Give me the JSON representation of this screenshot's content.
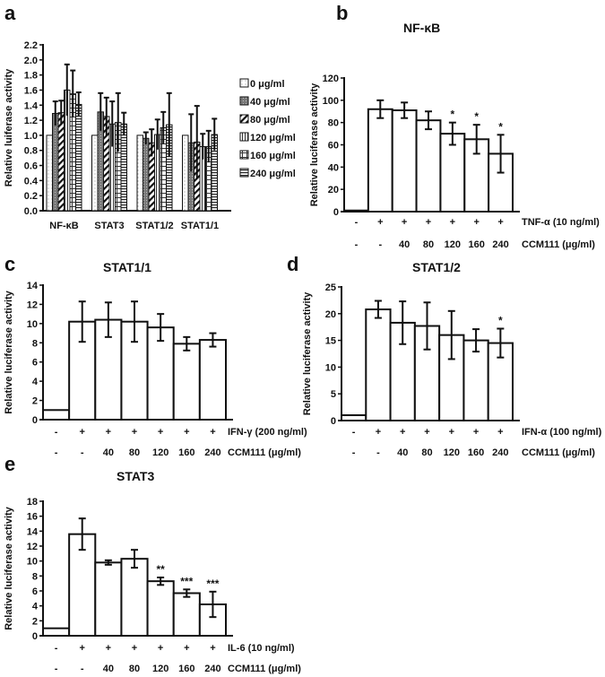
{
  "chart_data": [
    {
      "panel": "a",
      "type": "bar",
      "title": "",
      "ylabel": "Relative luiferase activity",
      "xlabel": "",
      "ylim": [
        0,
        2.2
      ],
      "yticks": [
        "0.0",
        "0.2",
        "0.4",
        "0.6",
        "0.8",
        "1.0",
        "1.2",
        "1.4",
        "1.6",
        "1.8",
        "2.0",
        "2.2"
      ],
      "categories": [
        "NF-κB",
        "STAT3",
        "STAT1/2",
        "STAT1/1"
      ],
      "legend_placement": "right",
      "series": [
        {
          "name": "0 μg/ml",
          "pattern": "dots",
          "values": [
            1.0,
            1.0,
            1.0,
            1.0
          ],
          "errors": [
            0,
            0,
            0,
            0
          ]
        },
        {
          "name": "40 μg/ml",
          "pattern": "dark-dots",
          "values": [
            1.29,
            1.31,
            0.96,
            0.9
          ],
          "errors": [
            0.16,
            0.25,
            0.08,
            0.38
          ]
        },
        {
          "name": "80 μg/ml",
          "pattern": "diagonal",
          "values": [
            1.3,
            1.25,
            0.9,
            0.91
          ],
          "errors": [
            0.16,
            0.25,
            0.18,
            0.48
          ]
        },
        {
          "name": "120 μg/ml",
          "pattern": "vertical",
          "values": [
            1.6,
            1.15,
            1.01,
            0.85
          ],
          "errors": [
            0.34,
            0.3,
            0.2,
            0.17
          ]
        },
        {
          "name": "160 μg/ml",
          "pattern": "grid",
          "values": [
            1.55,
            1.17,
            1.1,
            0.85
          ],
          "errors": [
            0.31,
            0.39,
            0.21,
            0.21
          ]
        },
        {
          "name": "240 μg/ml",
          "pattern": "horizontal",
          "values": [
            1.41,
            1.15,
            1.14,
            1.01
          ],
          "errors": [
            0.16,
            0.15,
            0.42,
            0.21
          ]
        }
      ]
    },
    {
      "panel": "b",
      "type": "bar",
      "title": "NF-κB",
      "ylabel": "Relative luciferase activity",
      "ylim": [
        0,
        120
      ],
      "yticks": [
        "0",
        "20",
        "40",
        "60",
        "80",
        "100",
        "120"
      ],
      "row1_label": "TNF-α (10 ng/ml)",
      "row1": [
        "-",
        "+",
        "+",
        "+",
        "+",
        "+",
        "+"
      ],
      "row2_label": "CCM111 (μg/ml)",
      "row2": [
        "-",
        "-",
        "40",
        "80",
        "120",
        "160",
        "240"
      ],
      "values": [
        1,
        92,
        91,
        82,
        70,
        65,
        52
      ],
      "errors": [
        0,
        8,
        7,
        8,
        10,
        13,
        17
      ],
      "significance": [
        "",
        "",
        "",
        "",
        "*",
        "*",
        "*"
      ]
    },
    {
      "panel": "c",
      "type": "bar",
      "title": "STAT1/1",
      "ylabel": "Relative luciferase activity",
      "ylim": [
        0,
        14
      ],
      "yticks": [
        "0",
        "2",
        "4",
        "6",
        "8",
        "10",
        "12",
        "14"
      ],
      "row1_label": "IFN-γ (200 ng/ml)",
      "row1": [
        "-",
        "+",
        "+",
        "+",
        "+",
        "+",
        "+"
      ],
      "row2_label": "CCM111 (μg/ml)",
      "row2": [
        "-",
        "-",
        "40",
        "80",
        "120",
        "160",
        "240"
      ],
      "values": [
        1,
        10.2,
        10.4,
        10.2,
        9.6,
        7.9,
        8.3
      ],
      "errors": [
        0,
        2.1,
        1.8,
        2.1,
        1.4,
        0.7,
        0.7
      ],
      "significance": [
        "",
        "",
        "",
        "",
        "",
        "",
        ""
      ]
    },
    {
      "panel": "d",
      "type": "bar",
      "title": "STAT1/2",
      "ylabel": "Relative luciferase activity",
      "ylim": [
        0,
        25
      ],
      "yticks": [
        "0",
        "5",
        "10",
        "15",
        "20",
        "25"
      ],
      "row1_label": "IFN-α (100 ng/ml)",
      "row1": [
        "-",
        "+",
        "+",
        "+",
        "+",
        "+",
        "+"
      ],
      "row2_label": "CCM111 (μg/ml)",
      "row2": [
        "-",
        "-",
        "40",
        "80",
        "120",
        "160",
        "240"
      ],
      "values": [
        1,
        20.8,
        18.3,
        17.7,
        16.0,
        15.0,
        14.5
      ],
      "errors": [
        0,
        1.6,
        4.0,
        4.4,
        4.5,
        2.1,
        2.7
      ],
      "significance": [
        "",
        "",
        "",
        "",
        "",
        "",
        "*"
      ]
    },
    {
      "panel": "e",
      "type": "bar",
      "title": "STAT3",
      "ylabel": "Relative luciferase activity",
      "ylim": [
        0,
        18
      ],
      "yticks": [
        "0",
        "2",
        "4",
        "6",
        "8",
        "10",
        "12",
        "14",
        "16",
        "18"
      ],
      "row1_label": "IL-6 (10 ng/ml)",
      "row1": [
        "-",
        "+",
        "+",
        "+",
        "+",
        "+",
        "+"
      ],
      "row2_label": "CCM111 (μg/ml)",
      "row2": [
        "-",
        "-",
        "40",
        "80",
        "120",
        "160",
        "240"
      ],
      "values": [
        1,
        13.6,
        9.8,
        10.3,
        7.3,
        5.7,
        4.2
      ],
      "errors": [
        0,
        2.1,
        0.3,
        1.2,
        0.5,
        0.5,
        1.7
      ],
      "significance": [
        "",
        "",
        "",
        "",
        "**",
        "***",
        "***"
      ]
    }
  ]
}
